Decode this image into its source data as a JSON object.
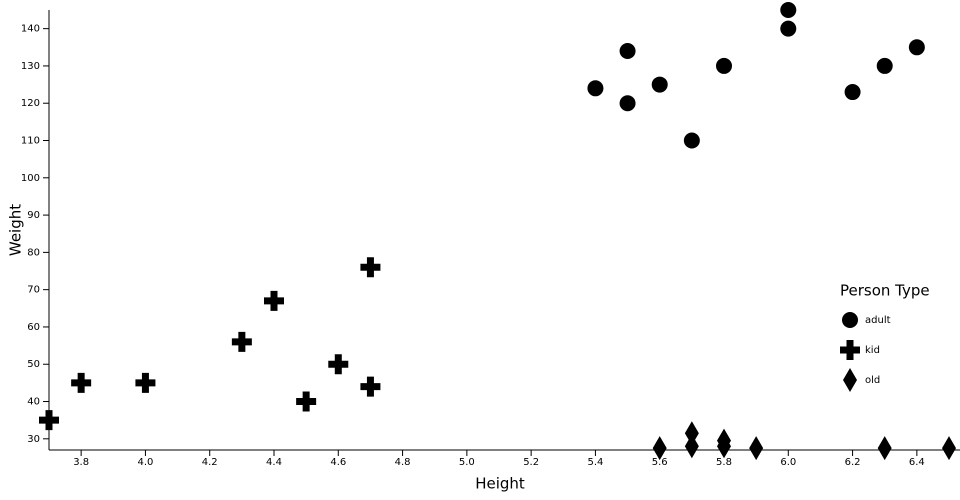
{
  "chart_data": {
    "type": "scatter",
    "x_label": "Height",
    "y_label": "Weight",
    "legend_title": "Person Type",
    "xlim": [
      3.7,
      6.5
    ],
    "ylim": [
      27,
      145
    ],
    "xticks": [
      3.8,
      {
        "value": 4.0,
        "label": "4.0"
      },
      4.2,
      4.4,
      4.6,
      4.8,
      {
        "value": 5.0,
        "label": "5.0"
      },
      5.2,
      5.4,
      5.6,
      5.8,
      {
        "value": 6.0,
        "label": "6.0"
      },
      6.2,
      6.4
    ],
    "yticks": [
      30,
      40,
      50,
      60,
      70,
      80,
      90,
      100,
      110,
      120,
      130,
      140
    ],
    "series": [
      {
        "name": "adult",
        "shape": "circle",
        "color": "#000000",
        "x": [
          5.4,
          5.5,
          5.5,
          5.6,
          5.7,
          5.8,
          6.0,
          6.0,
          6.2,
          6.3,
          6.4
        ],
        "values": [
          124,
          134,
          120,
          125,
          110,
          130,
          145,
          140,
          123,
          130,
          135
        ]
      },
      {
        "name": "kid",
        "shape": "cross",
        "color": "#000000",
        "x": [
          3.7,
          3.8,
          4.0,
          4.3,
          4.4,
          4.5,
          4.6,
          4.7,
          4.7
        ],
        "values": [
          35,
          45,
          45,
          56,
          67,
          40,
          50,
          76,
          44
        ]
      },
      {
        "name": "old",
        "shape": "diamond",
        "color": "#000000",
        "x": [
          5.6,
          5.7,
          5.7,
          5.8,
          5.8,
          5.9,
          6.3,
          6.5
        ],
        "values": [
          27.5,
          31.5,
          28,
          29.5,
          28,
          27.5,
          27.5,
          27.5
        ]
      }
    ]
  }
}
